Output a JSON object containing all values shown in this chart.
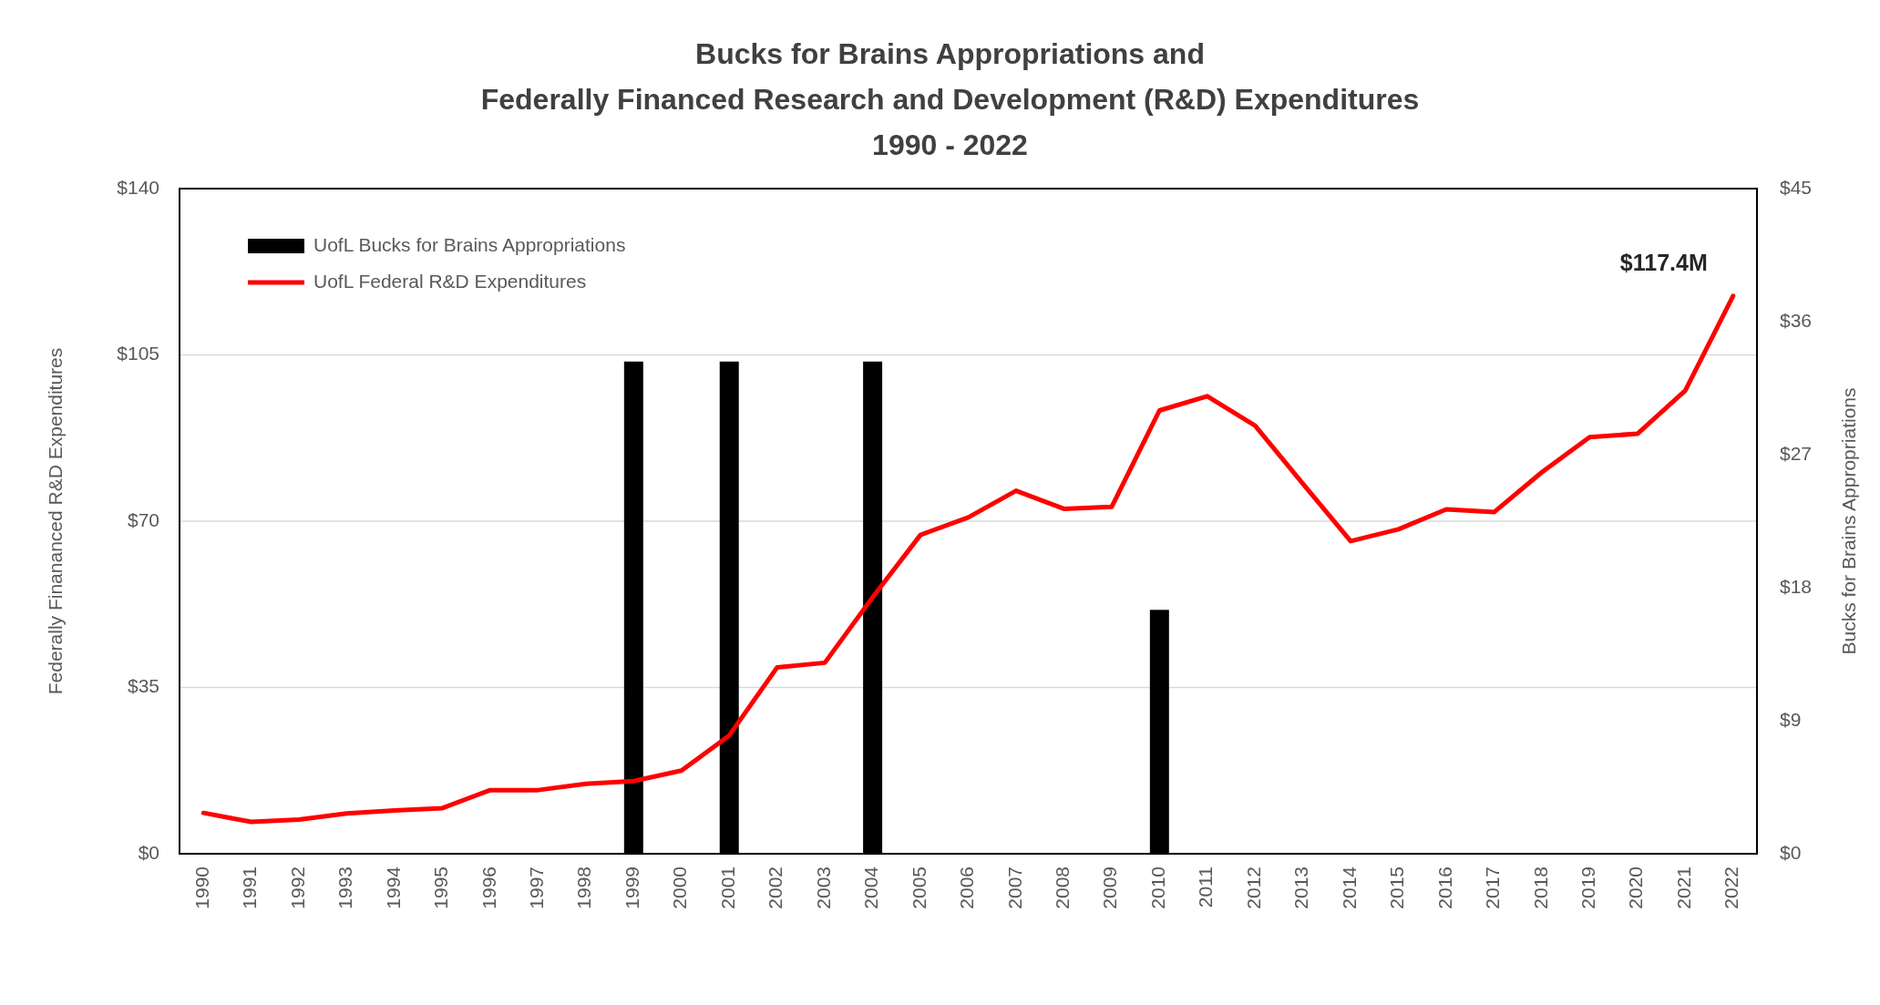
{
  "chart_data": {
    "type": "line",
    "title": "Bucks for Brains Appropriations and\nFederally Financed Research and Development (R&D) Expenditures\n1990 - 2022",
    "ylabel": "Federally Finananced R&D Expenditures",
    "y2label": "Bucks for Brains Appropriations",
    "categories": [
      "1990",
      "1991",
      "1992",
      "1993",
      "1994",
      "1995",
      "1996",
      "1997",
      "1998",
      "1999",
      "2000",
      "2001",
      "2002",
      "2003",
      "2004",
      "2005",
      "2006",
      "2007",
      "2008",
      "2009",
      "2010",
      "2011",
      "2012",
      "2013",
      "2014",
      "2015",
      "2016",
      "2017",
      "2018",
      "2019",
      "2020",
      "2021",
      "2022"
    ],
    "series": [
      {
        "name": "UofL Bucks for Brains Appropriations",
        "type": "bar",
        "axis": "y2",
        "color": "#000000",
        "values": [
          null,
          null,
          null,
          null,
          null,
          null,
          null,
          null,
          null,
          33.3,
          null,
          33.3,
          null,
          null,
          33.3,
          null,
          null,
          null,
          null,
          null,
          16.5,
          null,
          null,
          null,
          null,
          null,
          null,
          null,
          null,
          null,
          null,
          null,
          null
        ]
      },
      {
        "name": "UofL Federal R&D Expenditures",
        "color": "#ff0000",
        "values": [
          8.6,
          6.7,
          7.2,
          8.5,
          9.1,
          9.6,
          13.4,
          13.4,
          14.7,
          15.3,
          17.5,
          24.9,
          39.2,
          40.2,
          54,
          67.1,
          70.8,
          76.4,
          72.6,
          73.0,
          93.3,
          96.3,
          90.1,
          77.9,
          65.8,
          68.3,
          72.5,
          71.9,
          80.3,
          87.7,
          88.4,
          97.5,
          117.4
        ]
      }
    ],
    "ylim": [
      0,
      140
    ],
    "yticks": [
      {
        "value": 0,
        "label": "$0"
      },
      {
        "value": 35,
        "label": "$35"
      },
      {
        "value": 70,
        "label": "$70"
      },
      {
        "value": 105,
        "label": "$105"
      },
      {
        "value": 140,
        "label": "$140"
      }
    ],
    "y2lim": [
      0,
      45
    ],
    "y2ticks": [
      {
        "value": 0,
        "label": "$0"
      },
      {
        "value": 9,
        "label": "$9"
      },
      {
        "value": 18,
        "label": "$18"
      },
      {
        "value": 27,
        "label": "$27"
      },
      {
        "value": 36,
        "label": "$36"
      },
      {
        "value": 45,
        "label": "$45"
      }
    ],
    "annotations": [
      {
        "text": "$117.4M",
        "x": "2022",
        "y": 117.4
      }
    ],
    "grid": "y",
    "legend": "top left"
  }
}
